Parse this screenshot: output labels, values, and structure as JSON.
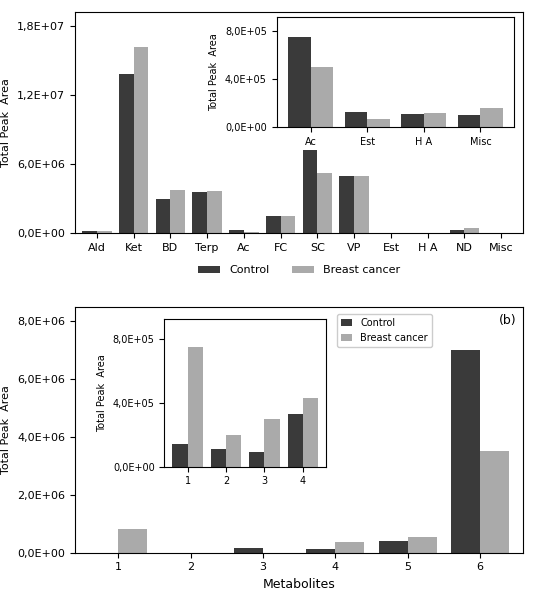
{
  "chart_data": [
    {
      "type": "bar",
      "categories": [
        "Ald",
        "Ket",
        "BD",
        "Terp",
        "Ac",
        "FC",
        "SC",
        "VP",
        "Est",
        "H A",
        "ND",
        "Misc"
      ],
      "series": [
        {
          "name": "Control",
          "color": "#3a3a3a",
          "values": [
            200000.0,
            13800000.0,
            3000000.0,
            3600000.0,
            280000.0,
            1500000.0,
            7200000.0,
            5000000.0,
            0,
            0,
            250000.0,
            0
          ]
        },
        {
          "name": "Breast cancer",
          "color": "#aaaaaa",
          "values": [
            200000.0,
            16200000.0,
            3800000.0,
            3700000.0,
            120000.0,
            1500000.0,
            5200000.0,
            5000000.0,
            0,
            0,
            500000.0,
            0
          ]
        }
      ],
      "ylabel": "Total Peak  Area",
      "ylim": [
        0,
        19200000.0
      ],
      "yticks": [
        {
          "value": 0,
          "label": "0,0E+00"
        },
        {
          "value": 6000000.0,
          "label": "6,0E+06"
        },
        {
          "value": 12000000.0,
          "label": "1,2E+07"
        },
        {
          "value": 18000000.0,
          "label": "1,8E+07"
        }
      ],
      "legend": "lower center",
      "grid": false
    },
    {
      "type": "bar",
      "categories": [
        "Ac",
        "Est",
        "H A",
        "Misc"
      ],
      "series": [
        {
          "color": "#3a3a3a",
          "values": [
            750000.0,
            130000.0,
            110000.0,
            100000.0
          ]
        },
        {
          "color": "#aaaaaa",
          "values": [
            500000.0,
            70000.0,
            120000.0,
            160000.0
          ]
        }
      ],
      "ylabel": "Total Peak  Area",
      "ylim": [
        0,
        920000.0
      ],
      "yticks": [
        {
          "value": 0,
          "label": "0,0E+00"
        },
        {
          "value": 400000.0,
          "label": "4,0E+05"
        },
        {
          "value": 800000.0,
          "label": "8,0E+05"
        }
      ],
      "grid": false
    },
    {
      "type": "bar",
      "categories": [
        "1",
        "2",
        "3",
        "4",
        "5",
        "6"
      ],
      "series": [
        {
          "name": "Control",
          "color": "#3a3a3a",
          "values": [
            0,
            0,
            150000.0,
            130000.0,
            400000.0,
            7000000.0
          ]
        },
        {
          "name": "Breast cancer",
          "color": "#aaaaaa",
          "values": [
            800000.0,
            0,
            0,
            350000.0,
            550000.0,
            3500000.0
          ]
        }
      ],
      "ylabel": "Total Peak  Area",
      "xlabel": "Metabolites",
      "ylim": [
        0,
        8500000.0
      ],
      "yticks": [
        {
          "value": 0,
          "label": "0,0E+00"
        },
        {
          "value": 2000000.0,
          "label": "2,0E+06"
        },
        {
          "value": 4000000.0,
          "label": "4,0E+06"
        },
        {
          "value": 6000000.0,
          "label": "6,0E+06"
        },
        {
          "value": 8000000.0,
          "label": "8,0E+06"
        }
      ],
      "annotations": [
        "(b)"
      ],
      "legend": "upper center",
      "grid": false
    },
    {
      "type": "bar",
      "categories": [
        "1",
        "2",
        "3",
        "4"
      ],
      "series": [
        {
          "color": "#3a3a3a",
          "values": [
            140000.0,
            110000.0,
            90000.0,
            330000.0
          ]
        },
        {
          "color": "#aaaaaa",
          "values": [
            750000.0,
            200000.0,
            300000.0,
            430000.0
          ]
        }
      ],
      "ylabel": "Total Peak  Area",
      "ylim": [
        0,
        920000.0
      ],
      "yticks": [
        {
          "value": 0,
          "label": "0,0E+00"
        },
        {
          "value": 400000.0,
          "label": "4,0E+05"
        },
        {
          "value": 800000.0,
          "label": "8,0E+05"
        }
      ],
      "grid": false
    }
  ]
}
